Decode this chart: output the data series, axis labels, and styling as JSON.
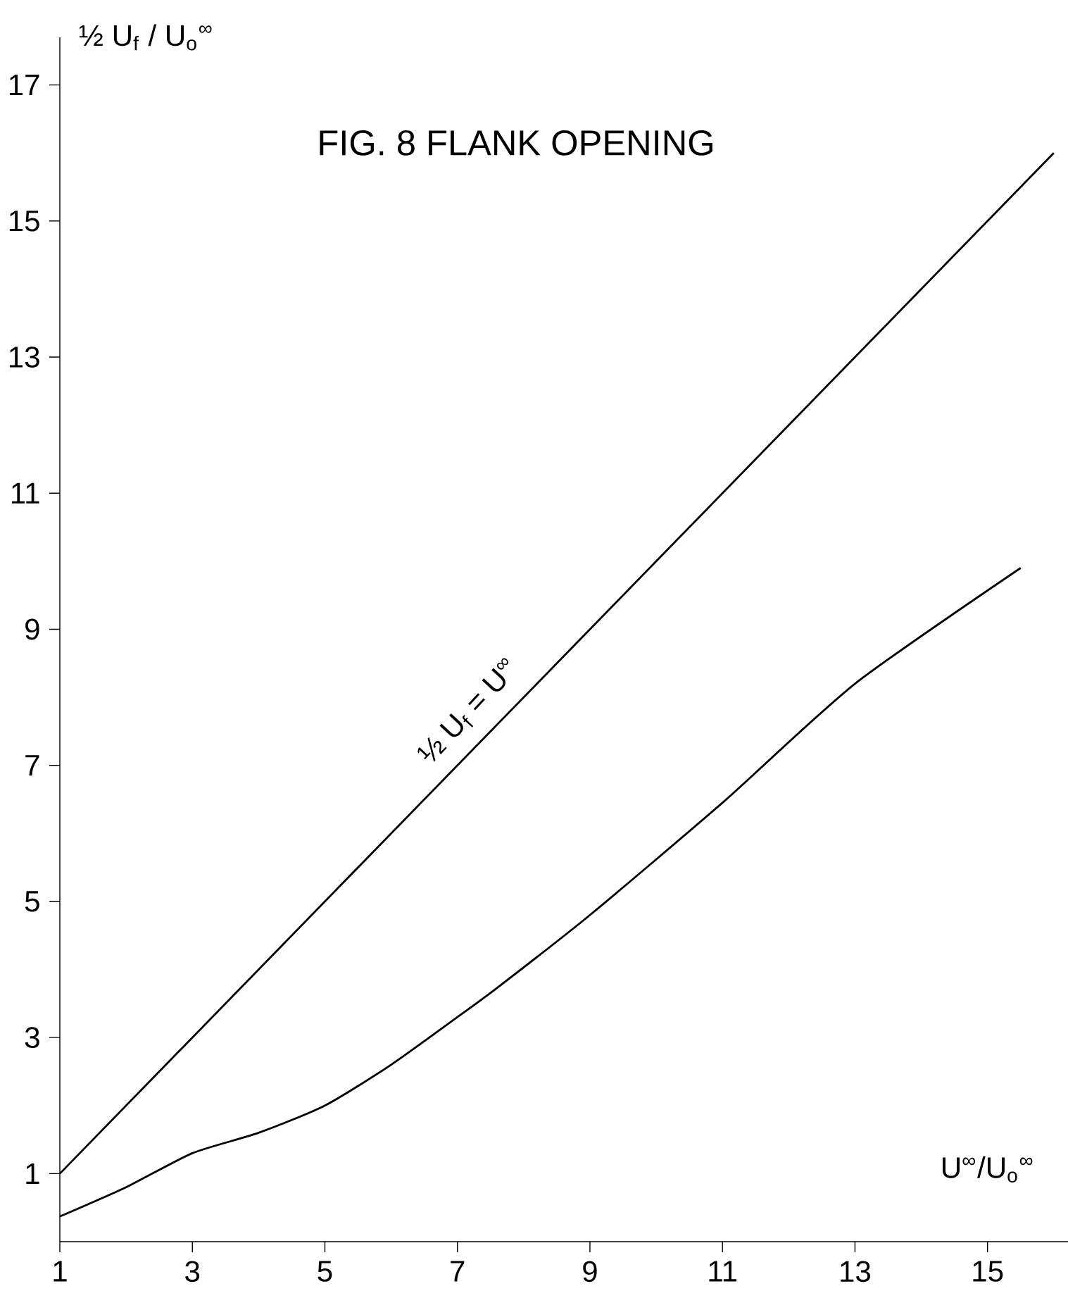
{
  "chart_data": {
    "type": "line",
    "title": "FIG. 8   FLANK OPENING",
    "xlabel": "U$^{∞}$/U$_{o}$$^{∞}$",
    "ylabel": "½ U$_{f}$ / U$_{o}$$^{∞}$",
    "xlim": [
      1,
      16.3
    ],
    "ylim": [
      0,
      17.7
    ],
    "xticks": [
      1,
      3,
      5,
      7,
      9,
      11,
      13,
      15
    ],
    "yticks": [
      1,
      3,
      5,
      7,
      9,
      11,
      13,
      15,
      17
    ],
    "grid": false,
    "marker": "none",
    "line_style": "solid",
    "series": [
      {
        "color": "#000000",
        "x": [
          1,
          16
        ],
        "values": [
          1,
          16
        ]
      },
      {
        "color": "#000000",
        "x": [
          1,
          2,
          3,
          4,
          5,
          6,
          7,
          7.6,
          9,
          11,
          13,
          15.5
        ],
        "values": [
          0.37,
          0.8,
          1.3,
          1.6,
          2.0,
          2.6,
          3.3,
          3.73,
          4.8,
          6.45,
          8.2,
          9.9
        ]
      }
    ],
    "annotations": [
      {
        "text": "½ U$_{f}$ = U$^{∞}$",
        "x": 7.5,
        "y": 7.5
      }
    ]
  }
}
